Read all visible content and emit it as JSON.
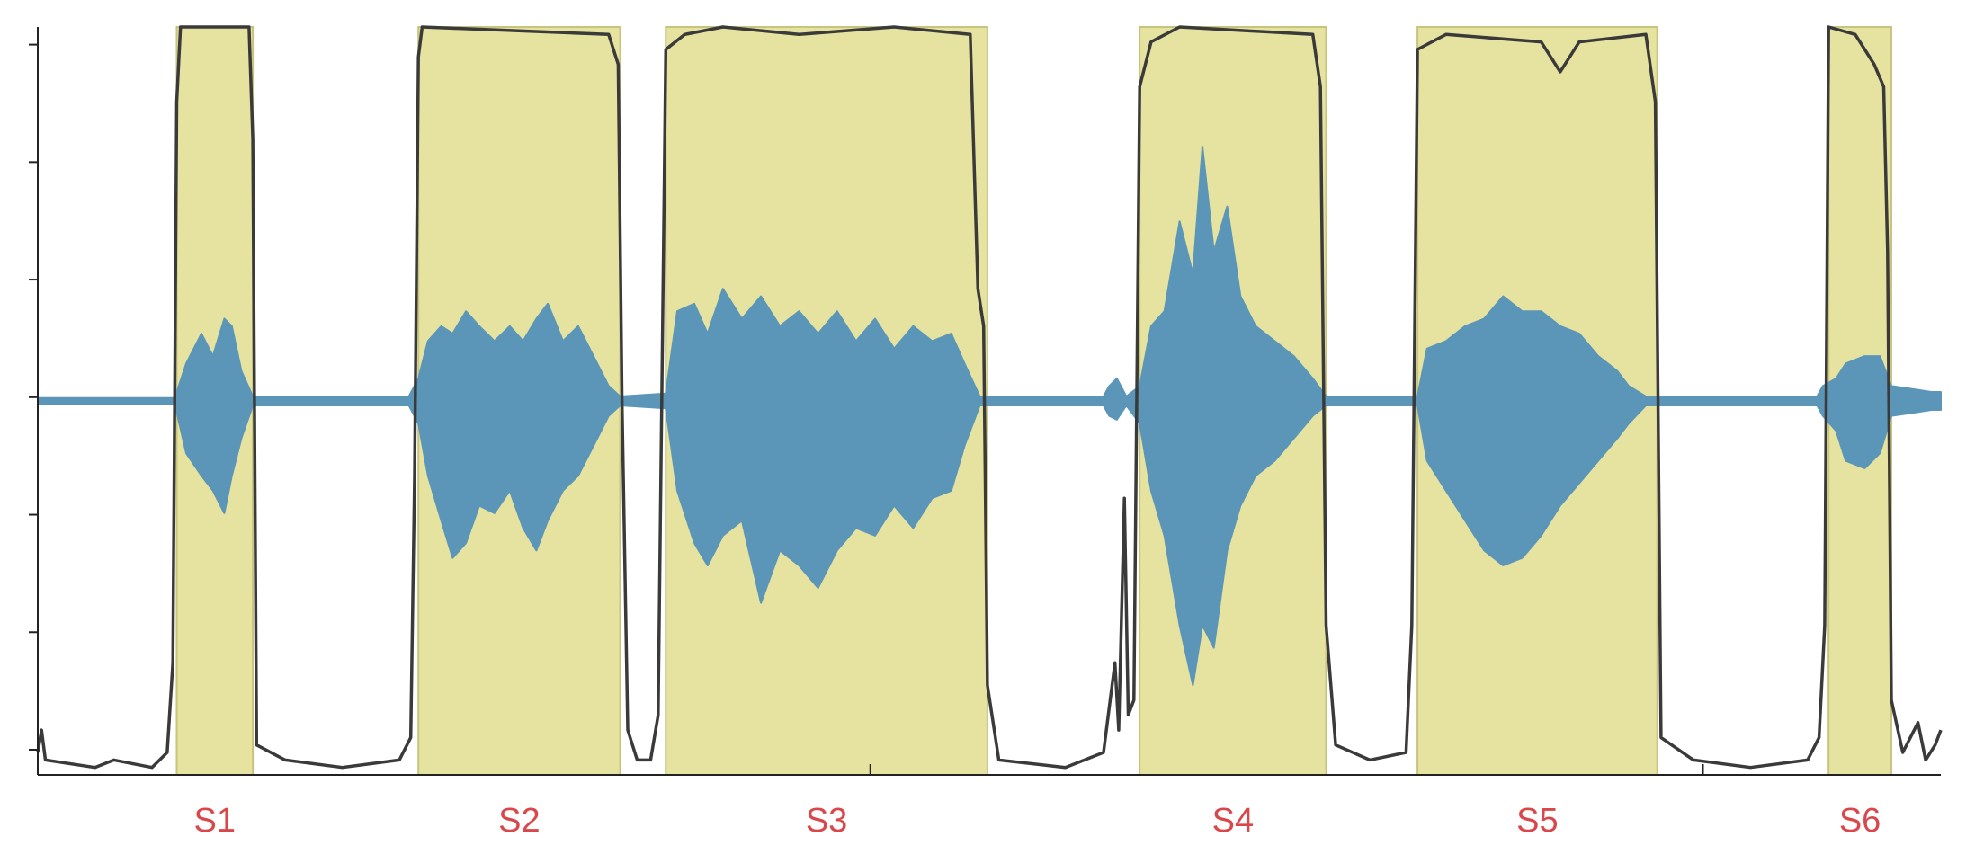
{
  "chart_data": {
    "type": "area",
    "title": "",
    "xlabel": "",
    "ylabel": "",
    "xlim": [
      0,
      1
    ],
    "ylim": [
      0,
      1
    ],
    "grid": false,
    "segments": [
      {
        "label": "S1",
        "start": 0.073,
        "end": 0.113
      },
      {
        "label": "S2",
        "start": 0.2,
        "end": 0.306
      },
      {
        "label": "S3",
        "start": 0.33,
        "end": 0.499
      },
      {
        "label": "S4",
        "start": 0.579,
        "end": 0.677
      },
      {
        "label": "S5",
        "start": 0.725,
        "end": 0.851
      },
      {
        "label": "S6",
        "start": 0.941,
        "end": 0.974
      }
    ],
    "series": [
      {
        "kind": "speech_probability",
        "color": "#3a3a3a",
        "points": [
          [
            0.0,
            0.03
          ],
          [
            0.002,
            0.06
          ],
          [
            0.004,
            0.02
          ],
          [
            0.03,
            0.01
          ],
          [
            0.04,
            0.02
          ],
          [
            0.06,
            0.01
          ],
          [
            0.068,
            0.03
          ],
          [
            0.071,
            0.15
          ],
          [
            0.073,
            0.9
          ],
          [
            0.075,
            1.0
          ],
          [
            0.111,
            1.0
          ],
          [
            0.113,
            0.85
          ],
          [
            0.115,
            0.04
          ],
          [
            0.13,
            0.02
          ],
          [
            0.16,
            0.01
          ],
          [
            0.19,
            0.02
          ],
          [
            0.196,
            0.05
          ],
          [
            0.198,
            0.4
          ],
          [
            0.2,
            0.96
          ],
          [
            0.202,
            1.0
          ],
          [
            0.3,
            0.99
          ],
          [
            0.305,
            0.95
          ],
          [
            0.307,
            0.5
          ],
          [
            0.31,
            0.06
          ],
          [
            0.315,
            0.02
          ],
          [
            0.322,
            0.02
          ],
          [
            0.326,
            0.08
          ],
          [
            0.33,
            0.97
          ],
          [
            0.34,
            0.99
          ],
          [
            0.36,
            1.0
          ],
          [
            0.4,
            0.99
          ],
          [
            0.45,
            1.0
          ],
          [
            0.49,
            0.99
          ],
          [
            0.494,
            0.65
          ],
          [
            0.497,
            0.6
          ],
          [
            0.499,
            0.12
          ],
          [
            0.505,
            0.02
          ],
          [
            0.54,
            0.01
          ],
          [
            0.56,
            0.03
          ],
          [
            0.566,
            0.15
          ],
          [
            0.568,
            0.06
          ],
          [
            0.571,
            0.37
          ],
          [
            0.573,
            0.08
          ],
          [
            0.576,
            0.1
          ],
          [
            0.579,
            0.92
          ],
          [
            0.585,
            0.98
          ],
          [
            0.6,
            1.0
          ],
          [
            0.67,
            0.99
          ],
          [
            0.674,
            0.92
          ],
          [
            0.677,
            0.2
          ],
          [
            0.682,
            0.04
          ],
          [
            0.7,
            0.02
          ],
          [
            0.719,
            0.03
          ],
          [
            0.722,
            0.2
          ],
          [
            0.725,
            0.97
          ],
          [
            0.74,
            0.99
          ],
          [
            0.79,
            0.98
          ],
          [
            0.8,
            0.94
          ],
          [
            0.81,
            0.98
          ],
          [
            0.845,
            0.99
          ],
          [
            0.85,
            0.9
          ],
          [
            0.853,
            0.05
          ],
          [
            0.87,
            0.02
          ],
          [
            0.9,
            0.01
          ],
          [
            0.93,
            0.02
          ],
          [
            0.936,
            0.05
          ],
          [
            0.939,
            0.2
          ],
          [
            0.941,
            1.0
          ],
          [
            0.955,
            0.99
          ],
          [
            0.965,
            0.95
          ],
          [
            0.97,
            0.92
          ],
          [
            0.972,
            0.7
          ],
          [
            0.974,
            0.1
          ],
          [
            0.98,
            0.03
          ],
          [
            0.988,
            0.07
          ],
          [
            0.992,
            0.02
          ],
          [
            0.997,
            0.04
          ],
          [
            1.0,
            0.06
          ]
        ]
      },
      {
        "kind": "waveform_amplitude",
        "color": "#5b96b8",
        "baseline": 0.5,
        "envelope_up": [
          [
            0.0,
            0.004
          ],
          [
            0.072,
            0.004
          ],
          [
            0.078,
            0.05
          ],
          [
            0.086,
            0.09
          ],
          [
            0.092,
            0.06
          ],
          [
            0.098,
            0.11
          ],
          [
            0.102,
            0.1
          ],
          [
            0.107,
            0.04
          ],
          [
            0.113,
            0.006
          ],
          [
            0.165,
            0.006
          ],
          [
            0.195,
            0.006
          ],
          [
            0.2,
            0.03
          ],
          [
            0.205,
            0.08
          ],
          [
            0.212,
            0.1
          ],
          [
            0.218,
            0.09
          ],
          [
            0.225,
            0.12
          ],
          [
            0.232,
            0.1
          ],
          [
            0.24,
            0.08
          ],
          [
            0.248,
            0.1
          ],
          [
            0.255,
            0.08
          ],
          [
            0.262,
            0.11
          ],
          [
            0.268,
            0.13
          ],
          [
            0.276,
            0.08
          ],
          [
            0.284,
            0.1
          ],
          [
            0.292,
            0.06
          ],
          [
            0.3,
            0.02
          ],
          [
            0.306,
            0.006
          ],
          [
            0.33,
            0.01
          ],
          [
            0.336,
            0.12
          ],
          [
            0.345,
            0.13
          ],
          [
            0.352,
            0.09
          ],
          [
            0.36,
            0.15
          ],
          [
            0.37,
            0.11
          ],
          [
            0.38,
            0.14
          ],
          [
            0.39,
            0.1
          ],
          [
            0.4,
            0.12
          ],
          [
            0.41,
            0.09
          ],
          [
            0.42,
            0.12
          ],
          [
            0.43,
            0.08
          ],
          [
            0.44,
            0.11
          ],
          [
            0.45,
            0.07
          ],
          [
            0.46,
            0.1
          ],
          [
            0.47,
            0.08
          ],
          [
            0.48,
            0.09
          ],
          [
            0.487,
            0.05
          ],
          [
            0.495,
            0.006
          ],
          [
            0.56,
            0.006
          ],
          [
            0.563,
            0.02
          ],
          [
            0.567,
            0.03
          ],
          [
            0.572,
            0.006
          ],
          [
            0.579,
            0.02
          ],
          [
            0.585,
            0.1
          ],
          [
            0.592,
            0.12
          ],
          [
            0.6,
            0.24
          ],
          [
            0.607,
            0.17
          ],
          [
            0.612,
            0.34
          ],
          [
            0.618,
            0.2
          ],
          [
            0.625,
            0.26
          ],
          [
            0.632,
            0.14
          ],
          [
            0.64,
            0.1
          ],
          [
            0.65,
            0.08
          ],
          [
            0.66,
            0.06
          ],
          [
            0.67,
            0.03
          ],
          [
            0.677,
            0.006
          ],
          [
            0.725,
            0.006
          ],
          [
            0.73,
            0.07
          ],
          [
            0.74,
            0.08
          ],
          [
            0.75,
            0.1
          ],
          [
            0.76,
            0.11
          ],
          [
            0.77,
            0.14
          ],
          [
            0.78,
            0.12
          ],
          [
            0.79,
            0.12
          ],
          [
            0.8,
            0.1
          ],
          [
            0.81,
            0.09
          ],
          [
            0.82,
            0.06
          ],
          [
            0.83,
            0.04
          ],
          [
            0.836,
            0.02
          ],
          [
            0.845,
            0.006
          ],
          [
            0.935,
            0.006
          ],
          [
            0.938,
            0.02
          ],
          [
            0.945,
            0.03
          ],
          [
            0.95,
            0.05
          ],
          [
            0.96,
            0.06
          ],
          [
            0.968,
            0.06
          ],
          [
            0.974,
            0.02
          ],
          [
            0.985,
            0.016
          ],
          [
            0.995,
            0.012
          ],
          [
            1.0,
            0.012
          ]
        ],
        "envelope_down": [
          [
            0.0,
            0.004
          ],
          [
            0.072,
            0.004
          ],
          [
            0.078,
            0.07
          ],
          [
            0.086,
            0.1
          ],
          [
            0.092,
            0.12
          ],
          [
            0.098,
            0.15
          ],
          [
            0.102,
            0.1
          ],
          [
            0.107,
            0.05
          ],
          [
            0.113,
            0.006
          ],
          [
            0.165,
            0.006
          ],
          [
            0.195,
            0.006
          ],
          [
            0.2,
            0.03
          ],
          [
            0.205,
            0.1
          ],
          [
            0.212,
            0.16
          ],
          [
            0.218,
            0.21
          ],
          [
            0.225,
            0.19
          ],
          [
            0.232,
            0.14
          ],
          [
            0.24,
            0.15
          ],
          [
            0.248,
            0.12
          ],
          [
            0.255,
            0.17
          ],
          [
            0.262,
            0.2
          ],
          [
            0.268,
            0.16
          ],
          [
            0.276,
            0.12
          ],
          [
            0.284,
            0.1
          ],
          [
            0.292,
            0.06
          ],
          [
            0.3,
            0.02
          ],
          [
            0.306,
            0.006
          ],
          [
            0.33,
            0.01
          ],
          [
            0.336,
            0.12
          ],
          [
            0.345,
            0.19
          ],
          [
            0.352,
            0.22
          ],
          [
            0.36,
            0.18
          ],
          [
            0.37,
            0.16
          ],
          [
            0.38,
            0.27
          ],
          [
            0.39,
            0.2
          ],
          [
            0.4,
            0.22
          ],
          [
            0.41,
            0.25
          ],
          [
            0.42,
            0.2
          ],
          [
            0.43,
            0.17
          ],
          [
            0.44,
            0.18
          ],
          [
            0.45,
            0.14
          ],
          [
            0.46,
            0.17
          ],
          [
            0.47,
            0.13
          ],
          [
            0.48,
            0.12
          ],
          [
            0.487,
            0.06
          ],
          [
            0.495,
            0.006
          ],
          [
            0.56,
            0.006
          ],
          [
            0.563,
            0.02
          ],
          [
            0.567,
            0.025
          ],
          [
            0.572,
            0.006
          ],
          [
            0.579,
            0.03
          ],
          [
            0.585,
            0.12
          ],
          [
            0.592,
            0.18
          ],
          [
            0.6,
            0.3
          ],
          [
            0.607,
            0.38
          ],
          [
            0.612,
            0.3
          ],
          [
            0.618,
            0.33
          ],
          [
            0.625,
            0.2
          ],
          [
            0.632,
            0.14
          ],
          [
            0.64,
            0.1
          ],
          [
            0.65,
            0.08
          ],
          [
            0.66,
            0.05
          ],
          [
            0.67,
            0.02
          ],
          [
            0.677,
            0.006
          ],
          [
            0.725,
            0.006
          ],
          [
            0.73,
            0.08
          ],
          [
            0.74,
            0.12
          ],
          [
            0.75,
            0.16
          ],
          [
            0.76,
            0.2
          ],
          [
            0.77,
            0.22
          ],
          [
            0.78,
            0.21
          ],
          [
            0.79,
            0.18
          ],
          [
            0.8,
            0.14
          ],
          [
            0.81,
            0.11
          ],
          [
            0.82,
            0.08
          ],
          [
            0.83,
            0.05
          ],
          [
            0.836,
            0.03
          ],
          [
            0.845,
            0.006
          ],
          [
            0.935,
            0.006
          ],
          [
            0.938,
            0.02
          ],
          [
            0.945,
            0.04
          ],
          [
            0.95,
            0.08
          ],
          [
            0.96,
            0.09
          ],
          [
            0.968,
            0.07
          ],
          [
            0.974,
            0.02
          ],
          [
            0.985,
            0.016
          ],
          [
            0.995,
            0.012
          ],
          [
            1.0,
            0.012
          ]
        ]
      }
    ],
    "colors": {
      "segment_fill": "#e6e3a0",
      "segment_edge": "#c7c47e",
      "probability_line": "#3a3a3a",
      "waveform": "#5b96b8",
      "label": "#d9474b",
      "axis": "#222222"
    }
  }
}
